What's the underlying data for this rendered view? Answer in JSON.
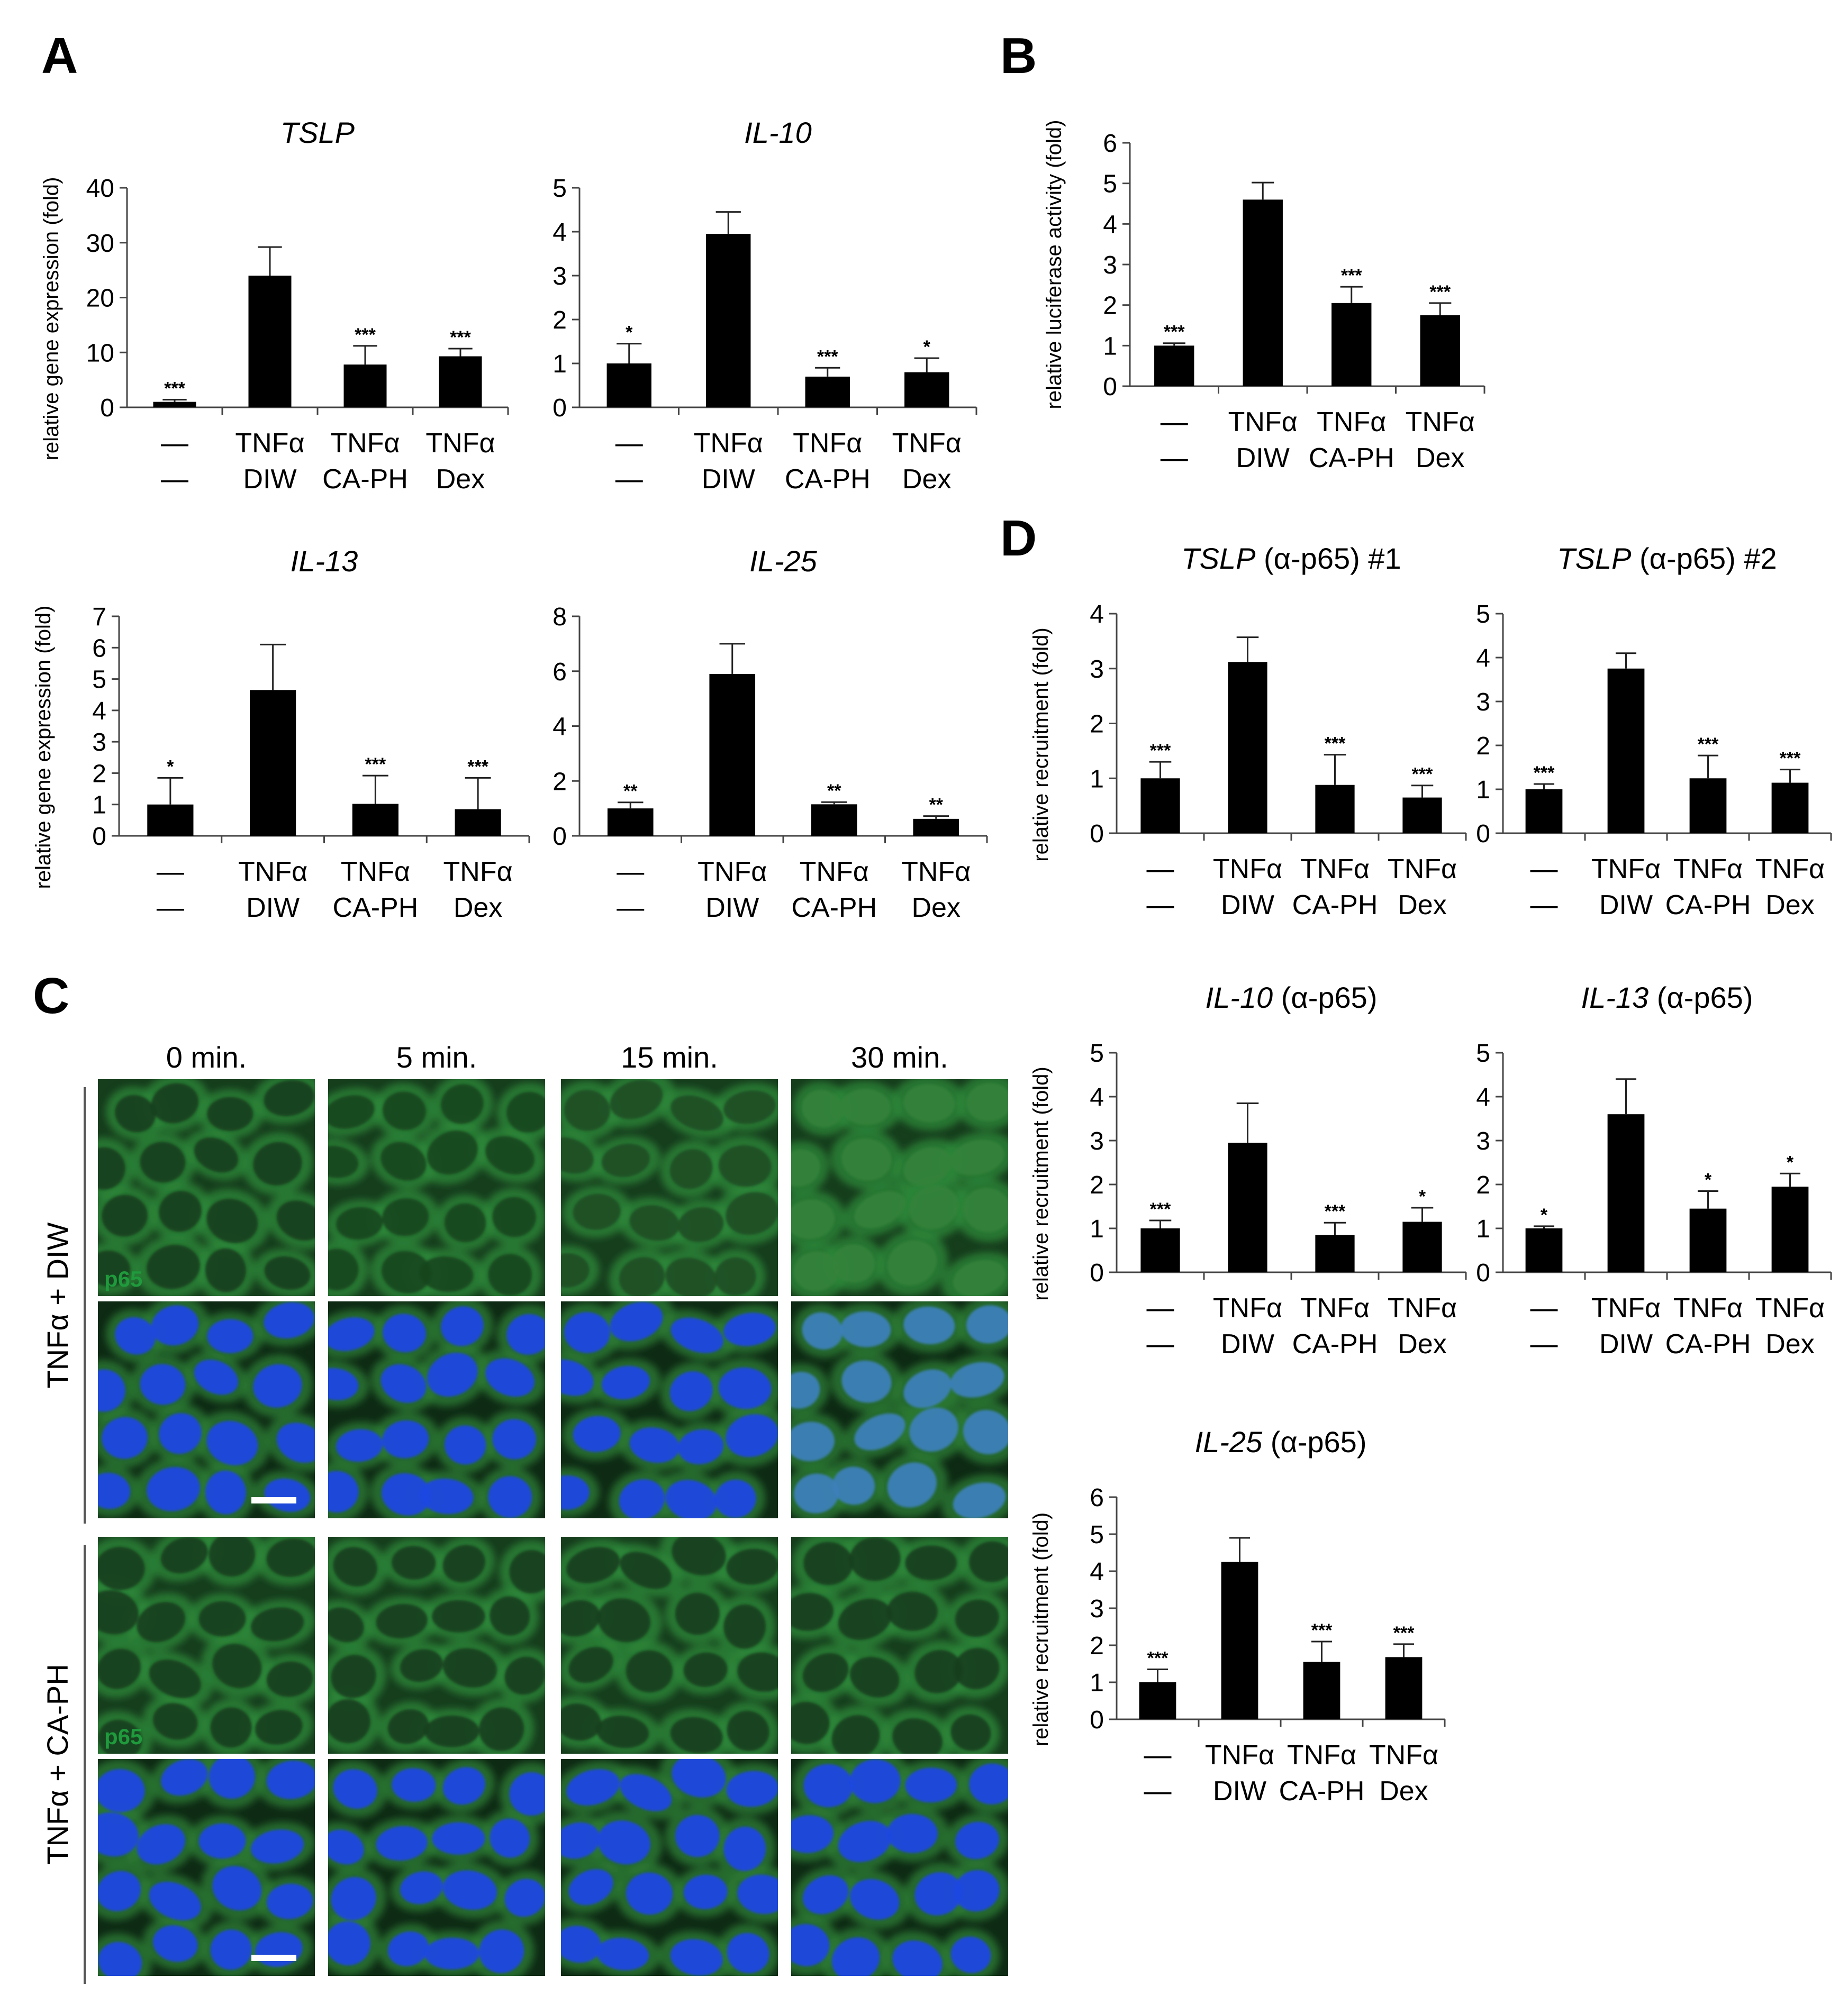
{
  "panel_letters": [
    "A",
    "B",
    "C",
    "D"
  ],
  "colors": {
    "bar": "#000000",
    "green_stain": "#1f9a3c",
    "nucleus": "#1c47e0",
    "cytoplasm_green": "#1d5e23"
  },
  "chart_data": [
    {
      "id": "A1",
      "panel": "A",
      "type": "bar",
      "title_main": "TSLP",
      "title_suffix": "",
      "ylabel": "relative gene expression (fold)",
      "ylim": [
        0,
        40
      ],
      "yticks": [
        0,
        10,
        20,
        30,
        40
      ],
      "categories": [
        [
          "—",
          "—"
        ],
        [
          "TNFα",
          "DIW"
        ],
        [
          "TNFα",
          "CA-PH"
        ],
        [
          "TNFα",
          "Dex"
        ]
      ],
      "values": [
        1,
        24,
        7.8,
        9.3
      ],
      "errors": [
        0.4,
        5.2,
        3.4,
        1.4
      ],
      "significance": [
        "***",
        "",
        "***",
        "***"
      ]
    },
    {
      "id": "A2",
      "panel": "A",
      "type": "bar",
      "title_main": "IL-10",
      "title_suffix": "",
      "ylabel": "",
      "ylim": [
        0,
        5
      ],
      "yticks": [
        0,
        1,
        2,
        3,
        4,
        5
      ],
      "categories": [
        [
          "—",
          "—"
        ],
        [
          "TNFα",
          "DIW"
        ],
        [
          "TNFα",
          "CA-PH"
        ],
        [
          "TNFα",
          "Dex"
        ]
      ],
      "values": [
        1,
        3.95,
        0.7,
        0.8
      ],
      "errors": [
        0.45,
        0.5,
        0.2,
        0.32
      ],
      "significance": [
        "*",
        "",
        "***",
        "*"
      ]
    },
    {
      "id": "A3",
      "panel": "A",
      "type": "bar",
      "title_main": "IL-13",
      "title_suffix": "",
      "ylabel": "relative gene expression (fold)",
      "ylim": [
        0,
        7
      ],
      "yticks": [
        0,
        1,
        2,
        3,
        4,
        5,
        6,
        7
      ],
      "categories": [
        [
          "—",
          "—"
        ],
        [
          "TNFα",
          "DIW"
        ],
        [
          "TNFα",
          "CA-PH"
        ],
        [
          "TNFα",
          "Dex"
        ]
      ],
      "values": [
        1,
        4.65,
        1.02,
        0.85
      ],
      "errors": [
        0.85,
        1.45,
        0.9,
        1.0
      ],
      "significance": [
        "*",
        "",
        "***",
        "***"
      ]
    },
    {
      "id": "A4",
      "panel": "A",
      "type": "bar",
      "title_main": "IL-25",
      "title_suffix": "",
      "ylabel": "",
      "ylim": [
        0,
        8
      ],
      "yticks": [
        0,
        2,
        4,
        6,
        8
      ],
      "categories": [
        [
          "—",
          "—"
        ],
        [
          "TNFα",
          "DIW"
        ],
        [
          "TNFα",
          "CA-PH"
        ],
        [
          "TNFα",
          "Dex"
        ]
      ],
      "values": [
        1,
        5.9,
        1.15,
        0.62
      ],
      "errors": [
        0.22,
        1.1,
        0.08,
        0.1
      ],
      "significance": [
        "**",
        "",
        "**",
        "**"
      ]
    },
    {
      "id": "B",
      "panel": "B",
      "type": "bar",
      "title_main": "",
      "title_suffix": "",
      "ylabel": "relative luciferase activity (fold)",
      "ylim": [
        0,
        6
      ],
      "yticks": [
        0,
        1,
        2,
        3,
        4,
        5,
        6
      ],
      "categories": [
        [
          "—",
          "—"
        ],
        [
          "TNFα",
          "DIW"
        ],
        [
          "TNFα",
          "CA-PH"
        ],
        [
          "TNFα",
          "Dex"
        ]
      ],
      "values": [
        1,
        4.6,
        2.05,
        1.75
      ],
      "errors": [
        0.06,
        0.42,
        0.4,
        0.3
      ],
      "significance": [
        "***",
        "",
        "***",
        "***"
      ]
    },
    {
      "id": "D1",
      "panel": "D",
      "type": "bar",
      "title_main": "TSLP",
      "title_suffix": " (α-p65) #1",
      "ylabel": "relative recruitment (fold)",
      "ylim": [
        0,
        4
      ],
      "yticks": [
        0,
        1,
        2,
        3,
        4
      ],
      "categories": [
        [
          "—",
          "—"
        ],
        [
          "TNFα",
          "DIW"
        ],
        [
          "TNFα",
          "CA-PH"
        ],
        [
          "TNFα",
          "Dex"
        ]
      ],
      "values": [
        1,
        3.12,
        0.88,
        0.65
      ],
      "errors": [
        0.3,
        0.45,
        0.55,
        0.22
      ],
      "significance": [
        "***",
        "",
        "***",
        "***"
      ]
    },
    {
      "id": "D2",
      "panel": "D",
      "type": "bar",
      "title_main": "TSLP",
      "title_suffix": " (α-p65) #2",
      "ylabel": "",
      "ylim": [
        0,
        5
      ],
      "yticks": [
        0,
        1,
        2,
        3,
        4,
        5
      ],
      "categories": [
        [
          "—",
          "—"
        ],
        [
          "TNFα",
          "DIW"
        ],
        [
          "TNFα",
          "CA-PH"
        ],
        [
          "TNFα",
          "Dex"
        ]
      ],
      "values": [
        1,
        3.75,
        1.25,
        1.15
      ],
      "errors": [
        0.12,
        0.35,
        0.52,
        0.3
      ],
      "significance": [
        "***",
        "",
        "***",
        "***"
      ]
    },
    {
      "id": "D3",
      "panel": "D",
      "type": "bar",
      "title_main": "IL-10",
      "title_suffix": " (α-p65)",
      "ylabel": "relative recruitment (fold)",
      "ylim": [
        0,
        5
      ],
      "yticks": [
        0,
        1,
        2,
        3,
        4,
        5
      ],
      "categories": [
        [
          "—",
          "—"
        ],
        [
          "TNFα",
          "DIW"
        ],
        [
          "TNFα",
          "CA-PH"
        ],
        [
          "TNFα",
          "Dex"
        ]
      ],
      "values": [
        1,
        2.95,
        0.85,
        1.15
      ],
      "errors": [
        0.18,
        0.9,
        0.28,
        0.32
      ],
      "significance": [
        "***",
        "",
        "***",
        "*"
      ]
    },
    {
      "id": "D4",
      "panel": "D",
      "type": "bar",
      "title_main": "IL-13",
      "title_suffix": " (α-p65)",
      "ylabel": "",
      "ylim": [
        0,
        5
      ],
      "yticks": [
        0,
        1,
        2,
        3,
        4,
        5
      ],
      "categories": [
        [
          "—",
          "—"
        ],
        [
          "TNFα",
          "DIW"
        ],
        [
          "TNFα",
          "CA-PH"
        ],
        [
          "TNFα",
          "Dex"
        ]
      ],
      "values": [
        1,
        3.6,
        1.45,
        1.95
      ],
      "errors": [
        0.05,
        0.8,
        0.4,
        0.3
      ],
      "significance": [
        "*",
        "",
        "*",
        "*"
      ]
    },
    {
      "id": "D5",
      "panel": "D",
      "type": "bar",
      "title_main": "IL-25",
      "title_suffix": " (α-p65)",
      "ylabel": "relative recruitment (fold)",
      "ylim": [
        0,
        6
      ],
      "yticks": [
        0,
        1,
        2,
        3,
        4,
        5,
        6
      ],
      "categories": [
        [
          "—",
          "—"
        ],
        [
          "TNFα",
          "DIW"
        ],
        [
          "TNFα",
          "CA-PH"
        ],
        [
          "TNFα",
          "Dex"
        ]
      ],
      "values": [
        1,
        4.25,
        1.55,
        1.68
      ],
      "errors": [
        0.35,
        0.65,
        0.55,
        0.35
      ],
      "significance": [
        "***",
        "",
        "***",
        "***"
      ]
    }
  ],
  "microscopy": {
    "timepoints": [
      "0 min.",
      "5 min.",
      "15 min.",
      "30 min."
    ],
    "conditions": [
      "TNFα + DIW",
      "TNFα + CA-PH"
    ],
    "stain_label": "p65",
    "nuclear_intensity": [
      0.05,
      0.12,
      0.2,
      0.65
    ]
  }
}
